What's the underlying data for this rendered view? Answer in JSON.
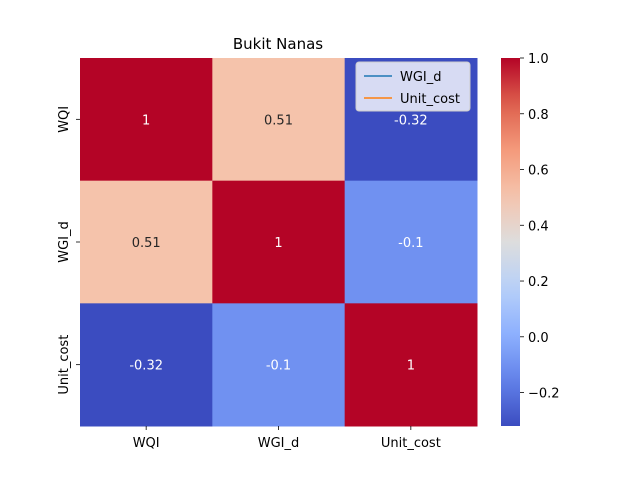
{
  "chart_data": {
    "type": "heatmap",
    "title": "Bukit Nanas",
    "x_labels": [
      "WQI",
      "WGI_d",
      "Unit_cost"
    ],
    "y_labels": [
      "WQI",
      "WGI_d",
      "Unit_cost"
    ],
    "values": [
      [
        1,
        0.51,
        -0.32
      ],
      [
        0.51,
        1,
        -0.1
      ],
      [
        -0.32,
        -0.1,
        1
      ]
    ],
    "annotations": [
      [
        "1",
        "0.51",
        "-0.32"
      ],
      [
        "0.51",
        "1",
        "-0.1"
      ],
      [
        "-0.32",
        "-0.1",
        "1"
      ]
    ],
    "colormap": "coolwarm",
    "colorbar": {
      "vmin": -0.32,
      "vmax": 1.0,
      "ticks": [
        1.0,
        0.8,
        0.6,
        0.4,
        0.2,
        0.0,
        -0.2
      ],
      "tick_labels": [
        "1.0",
        "0.8",
        "0.6",
        "0.4",
        "0.2",
        "0.0",
        "−0.2"
      ]
    },
    "legend": {
      "placement": "top-right",
      "entries": [
        {
          "name": "WGI_d",
          "color": "#1f77b4"
        },
        {
          "name": "Unit_cost",
          "color": "#ff7f0e"
        }
      ]
    }
  }
}
